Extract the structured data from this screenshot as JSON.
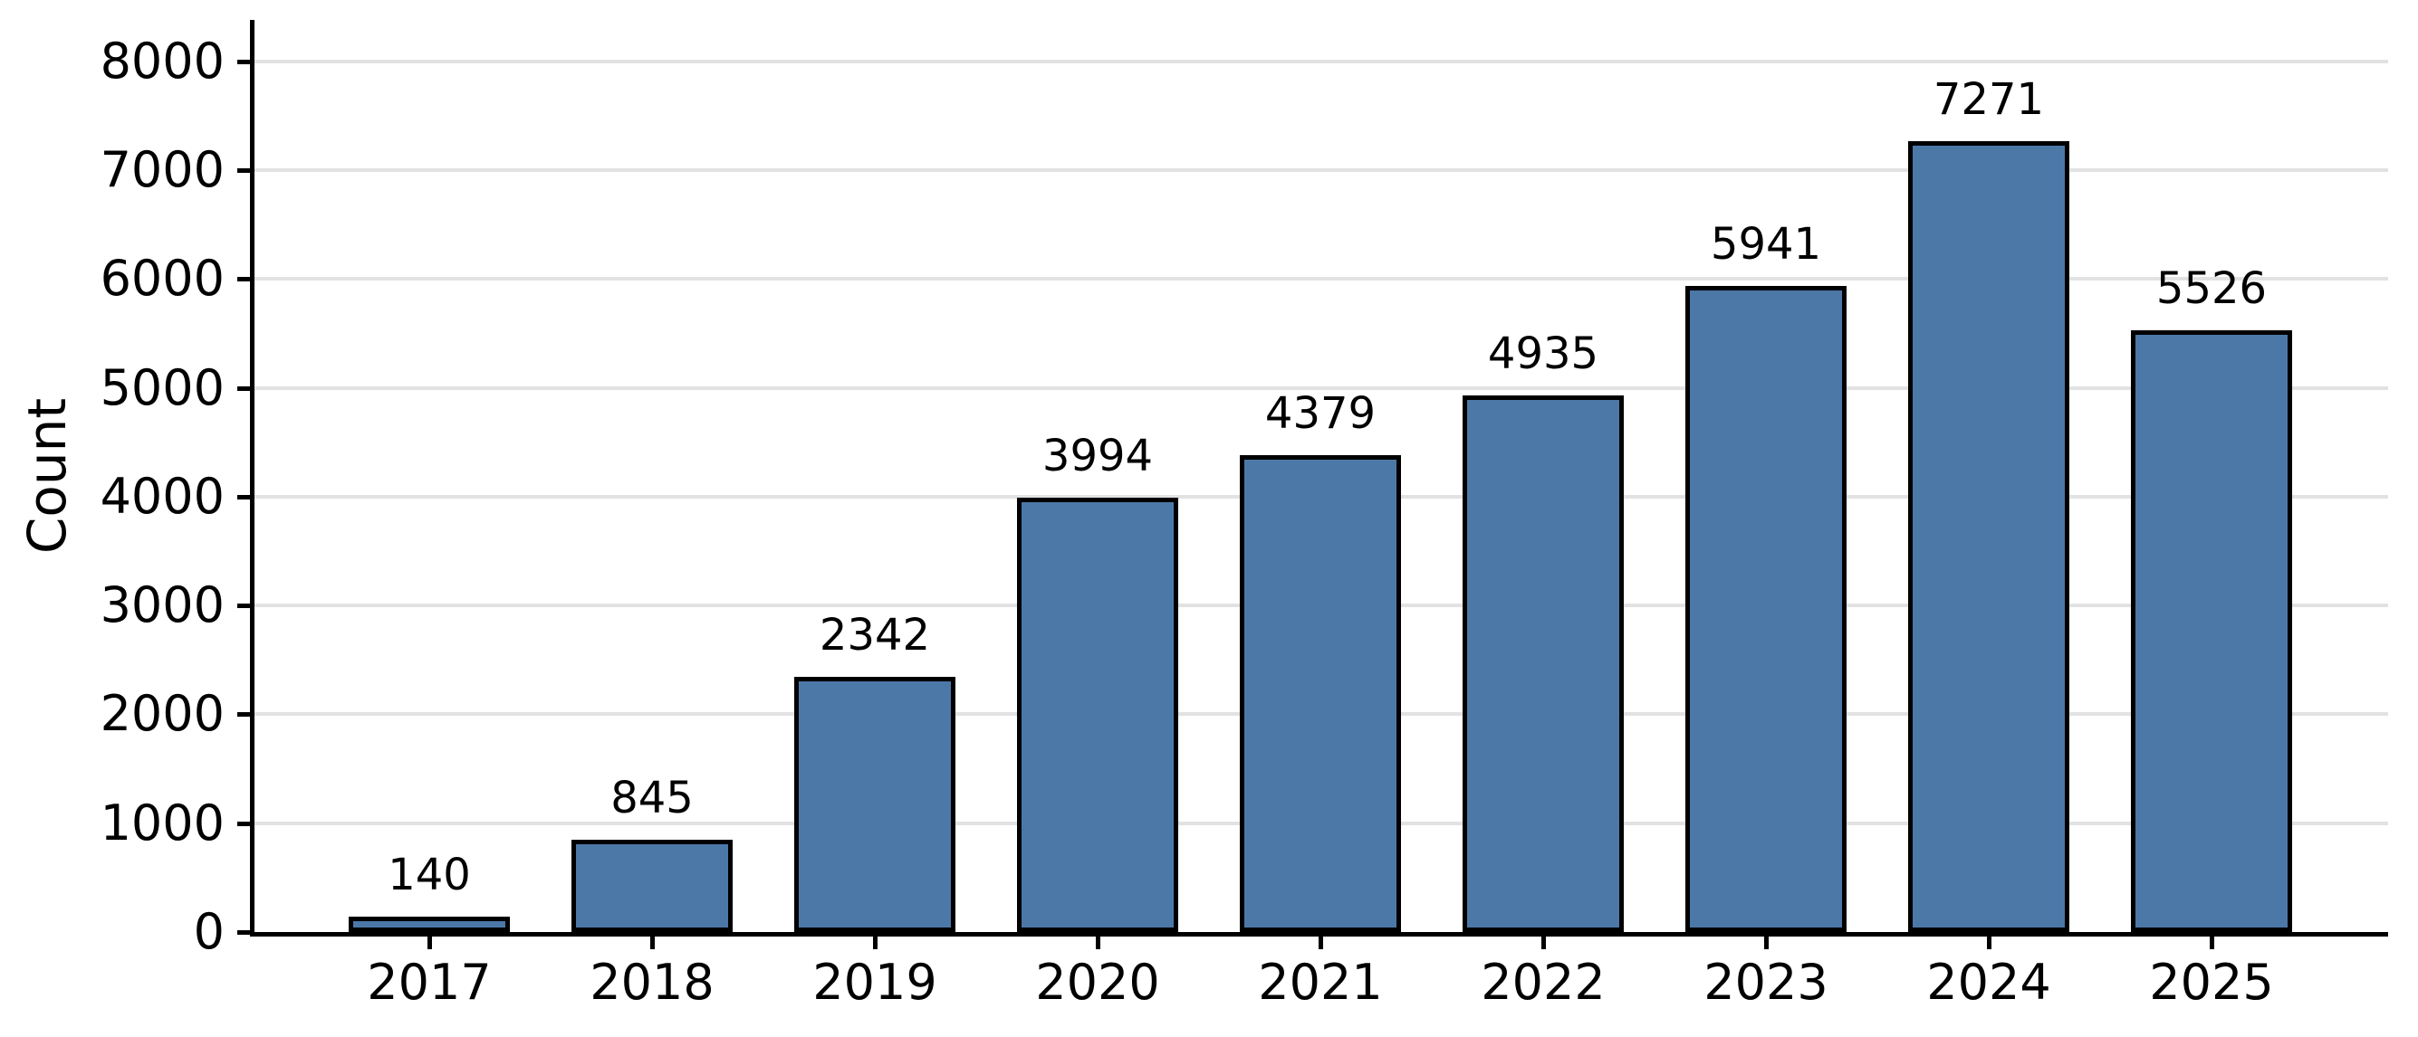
{
  "chart_data": {
    "type": "bar",
    "title": "",
    "xlabel": "",
    "ylabel": "Count",
    "categories": [
      "2017",
      "2018",
      "2019",
      "2020",
      "2021",
      "2022",
      "2023",
      "2024",
      "2025"
    ],
    "values": [
      140,
      845,
      2342,
      3994,
      4379,
      4935,
      5941,
      7271,
      5526
    ],
    "bar_value_labels": [
      "140",
      "845",
      "2342",
      "3994",
      "4379",
      "4935",
      "5941",
      "7271",
      "5526"
    ],
    "yticks": [
      0,
      1000,
      2000,
      3000,
      4000,
      5000,
      6000,
      7000,
      8000
    ],
    "ytick_labels": [
      "0",
      "1000",
      "2000",
      "3000",
      "4000",
      "5000",
      "6000",
      "7000",
      "8000"
    ],
    "ylim": [
      0,
      8382
    ],
    "grid": true,
    "legend": "none",
    "colors": {
      "bar_fill": "#4c78a8",
      "bar_edge": "#000000",
      "gridline": "#e2e2e2",
      "axis": "#000000",
      "text": "#000000",
      "background": "#ffffff"
    }
  }
}
